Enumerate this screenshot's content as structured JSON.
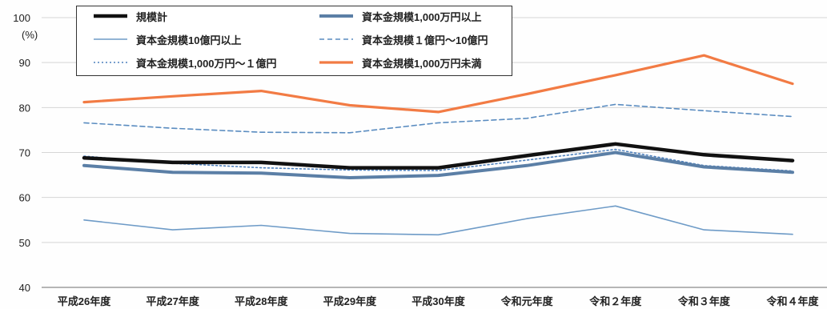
{
  "chart_data": {
    "type": "line",
    "ylabel": "(%)",
    "categories": [
      "平成26年度",
      "平成27年度",
      "平成28年度",
      "平成29年度",
      "平成30年度",
      "令和元年度",
      "令和２年度",
      "令和３年度",
      "令和４年度"
    ],
    "ylim": [
      40,
      100
    ],
    "yticks": [
      40,
      50,
      60,
      70,
      80,
      90,
      100
    ],
    "grid": true,
    "legend": "top-left",
    "series": [
      {
        "name": "規模計",
        "color": "#111111",
        "dash": "solid",
        "values": [
          68.8,
          67.8,
          67.8,
          66.6,
          66.6,
          69.3,
          71.9,
          69.5,
          68.2
        ]
      },
      {
        "name": "資本金規模1,000万円以上",
        "color": "#5b7fa6",
        "dash": "solid",
        "values": [
          67.1,
          65.6,
          65.4,
          64.4,
          64.9,
          67.1,
          70.0,
          66.8,
          65.6
        ]
      },
      {
        "name": "資本金規模10億円以上",
        "color": "#6e9bc7",
        "dash": "solid",
        "values": [
          55.0,
          52.8,
          53.8,
          52.0,
          51.7,
          55.3,
          58.1,
          52.8,
          51.8
        ]
      },
      {
        "name": "資本金規模１億円～10億円",
        "color": "#5a8cc0",
        "dash": "dashed",
        "values": [
          76.6,
          75.4,
          74.5,
          74.4,
          76.6,
          77.6,
          80.7,
          79.3,
          78.0
        ]
      },
      {
        "name": "資本金規模1,000万円～１億円",
        "color": "#4f81bd",
        "dash": "dotted",
        "values": [
          69.2,
          67.6,
          66.6,
          66.1,
          66.0,
          68.3,
          70.7,
          67.1,
          65.9
        ]
      },
      {
        "name": "資本金規模1,000万円未満",
        "color": "#f27b44",
        "dash": "solid",
        "values": [
          81.2,
          82.5,
          83.7,
          80.5,
          79.0,
          83.0,
          87.2,
          91.6,
          85.3
        ]
      }
    ]
  }
}
